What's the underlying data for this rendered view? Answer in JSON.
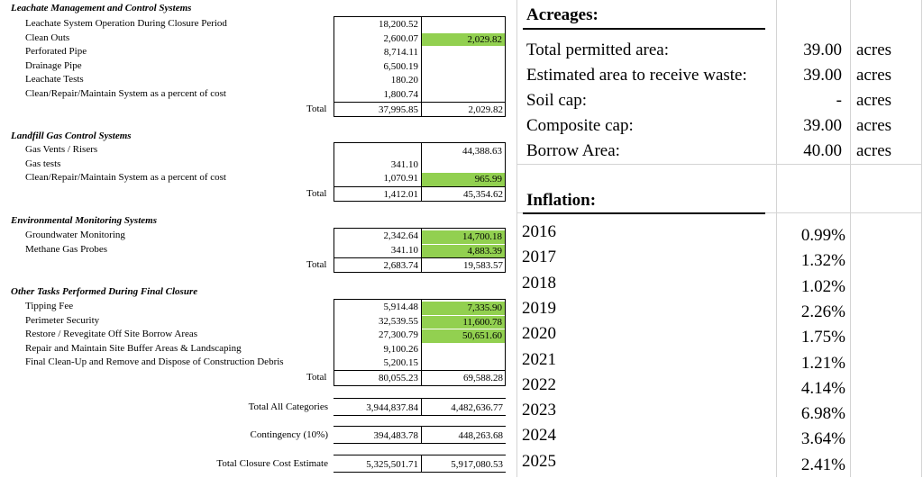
{
  "leachate": {
    "title": "Leachate Management and Control Systems",
    "rows": [
      {
        "label": "Leachate System Operation During Closure Period",
        "c1": "18,200.52",
        "c2": ""
      },
      {
        "label": "Clean Outs",
        "c1": "2,600.07",
        "c2": "2,029.82"
      },
      {
        "label": "Perforated Pipe",
        "c1": "8,714.11",
        "c2": ""
      },
      {
        "label": "Drainage Pipe",
        "c1": "6,500.19",
        "c2": ""
      },
      {
        "label": "Leachate Tests",
        "c1": "180.20",
        "c2": ""
      },
      {
        "label": "Clean/Repair/Maintain System as a percent of cost",
        "c1": "1,800.74",
        "c2": ""
      }
    ],
    "total_label": "Total",
    "total_c1": "37,995.85",
    "total_c2": "2,029.82"
  },
  "gas": {
    "title": "Landfill Gas Control Systems",
    "rows": [
      {
        "label": "Gas Vents / Risers",
        "c1": "",
        "c2": "44,388.63"
      },
      {
        "label": "Gas tests",
        "c1": "341.10",
        "c2": ""
      },
      {
        "label": "Clean/Repair/Maintain System as a percent of cost",
        "c1": "1,070.91",
        "c2": "965.99"
      }
    ],
    "total_label": "Total",
    "total_c1": "1,412.01",
    "total_c2": "45,354.62"
  },
  "env": {
    "title": "Environmental Monitoring Systems",
    "rows": [
      {
        "label": "Groundwater Monitoring",
        "c1": "2,342.64",
        "c2": "14,700.18"
      },
      {
        "label": "Methane Gas Probes",
        "c1": "341.10",
        "c2": "4,883.39"
      }
    ],
    "total_label": "Total",
    "total_c1": "2,683.74",
    "total_c2": "19,583.57"
  },
  "other": {
    "title": "Other Tasks Performed During Final Closure",
    "rows": [
      {
        "label": "Tipping Fee",
        "c1": "5,914.48",
        "c2": "7,335.90"
      },
      {
        "label": "Perimeter Security",
        "c1": "32,539.55",
        "c2": "11,600.78"
      },
      {
        "label": "Restore / Revegitate Off Site Borrow Areas",
        "c1": "27,300.79",
        "c2": "50,651.60"
      },
      {
        "label": "Repair and Maintain Site Buffer Areas & Landscaping",
        "c1": "9,100.26",
        "c2": ""
      },
      {
        "label": "Final Clean-Up and Remove and Dispose of Construction Debris",
        "c1": "5,200.15",
        "c2": ""
      }
    ],
    "total_label": "Total",
    "total_c1": "80,055.23",
    "total_c2": "69,588.28"
  },
  "summary": {
    "all_label": "Total All Categories",
    "all_c1": "3,944,837.84",
    "all_c2": "4,482,636.77",
    "cont_label": "Contingency (10%)",
    "cont_c1": "394,483.78",
    "cont_c2": "448,263.68",
    "closure_label": "Total Closure Cost Estimate",
    "closure_c1": "5,325,501.71",
    "closure_c2": "5,917,080.53"
  },
  "acreages": {
    "title": "Acreages:",
    "rows": [
      {
        "label": "Total permitted area:",
        "value": "39.00",
        "unit": "acres"
      },
      {
        "label": "Estimated area to receive waste:",
        "value": "39.00",
        "unit": "acres"
      },
      {
        "label": "Soil cap:",
        "value": "-",
        "unit": "acres"
      },
      {
        "label": "Composite cap:",
        "value": "39.00",
        "unit": "acres"
      },
      {
        "label": "Borrow Area:",
        "value": "40.00",
        "unit": "acres"
      }
    ]
  },
  "inflation": {
    "title": "Inflation:",
    "rows": [
      {
        "year": "2016",
        "rate": "0.99%"
      },
      {
        "year": "2017",
        "rate": "1.32%"
      },
      {
        "year": "2018",
        "rate": "1.02%"
      },
      {
        "year": "2019",
        "rate": "2.26%"
      },
      {
        "year": "2020",
        "rate": "1.75%"
      },
      {
        "year": "2021",
        "rate": "1.21%"
      },
      {
        "year": "2022",
        "rate": "4.14%"
      },
      {
        "year": "2023",
        "rate": "6.98%"
      },
      {
        "year": "2024",
        "rate": "3.64%"
      },
      {
        "year": "2025",
        "rate": "2.41%"
      }
    ]
  },
  "colors": {
    "highlight": "#92d050"
  }
}
